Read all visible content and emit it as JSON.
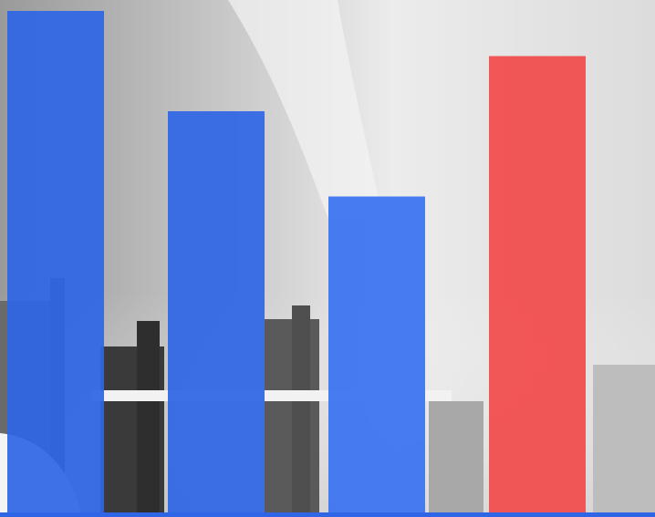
{
  "chart_data": {
    "type": "bar",
    "categories": [
      null,
      null,
      null,
      null
    ],
    "values": [
      100,
      80,
      63,
      91
    ],
    "colors": [
      "#2f66e6",
      "#2f66e6",
      "#3a72f0",
      "#f24b4b"
    ],
    "ylim": [
      0,
      100
    ]
  }
}
